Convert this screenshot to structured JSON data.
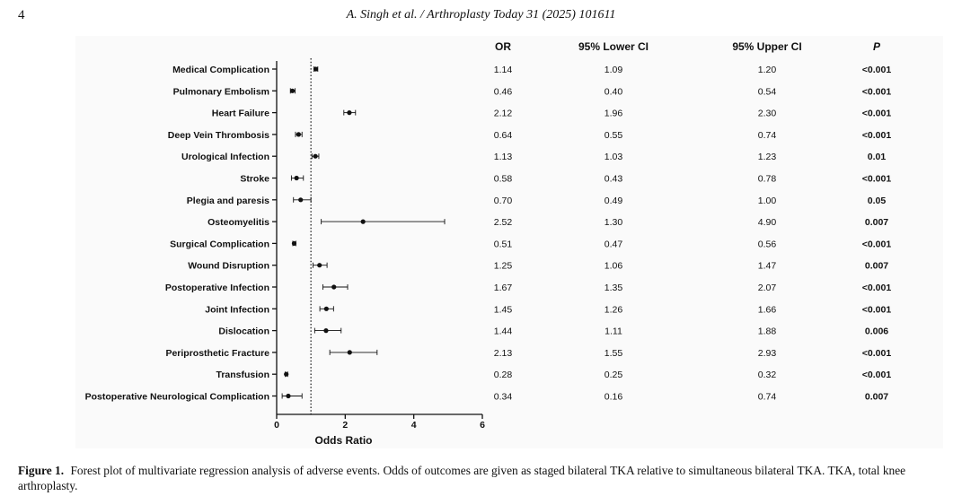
{
  "header": {
    "page_number": "4",
    "running_title": "A. Singh et al. / Arthroplasty Today 31 (2025) 101611"
  },
  "caption": {
    "label": "Figure 1.",
    "text": "Forest plot of multivariate regression analysis of adverse events. Odds of outcomes are given as staged bilateral TKA relative to simultaneous bilateral TKA. TKA, total knee arthroplasty."
  },
  "colors": {
    "ink": "#111111",
    "panel": "#fafafa"
  },
  "chart_data": {
    "type": "forest",
    "title": "",
    "xlabel": "Odds Ratio",
    "ylabel": "",
    "xlim": [
      0,
      6
    ],
    "xticks": [
      0,
      2,
      4,
      6
    ],
    "reference_line": 1,
    "columns": [
      "OR",
      "95% Lower CI",
      "95% Upper CI",
      "P"
    ],
    "rows": [
      {
        "label": "Medical Complication",
        "or": 1.14,
        "lower": 1.09,
        "upper": 1.2,
        "or_text": "1.14",
        "lower_text": "1.09",
        "upper_text": "1.20",
        "p": "<0.001"
      },
      {
        "label": "Pulmonary Embolism",
        "or": 0.46,
        "lower": 0.4,
        "upper": 0.54,
        "or_text": "0.46",
        "lower_text": "0.40",
        "upper_text": "0.54",
        "p": "<0.001"
      },
      {
        "label": "Heart Failure",
        "or": 2.12,
        "lower": 1.96,
        "upper": 2.3,
        "or_text": "2.12",
        "lower_text": "1.96",
        "upper_text": "2.30",
        "p": "<0.001"
      },
      {
        "label": "Deep Vein Thrombosis",
        "or": 0.64,
        "lower": 0.55,
        "upper": 0.74,
        "or_text": "0.64",
        "lower_text": "0.55",
        "upper_text": "0.74",
        "p": "<0.001"
      },
      {
        "label": "Urological Infection",
        "or": 1.13,
        "lower": 1.03,
        "upper": 1.23,
        "or_text": "1.13",
        "lower_text": "1.03",
        "upper_text": "1.23",
        "p": "0.01"
      },
      {
        "label": "Stroke",
        "or": 0.58,
        "lower": 0.43,
        "upper": 0.78,
        "or_text": "0.58",
        "lower_text": "0.43",
        "upper_text": "0.78",
        "p": "<0.001"
      },
      {
        "label": "Plegia and paresis",
        "or": 0.7,
        "lower": 0.49,
        "upper": 1.0,
        "or_text": "0.70",
        "lower_text": "0.49",
        "upper_text": "1.00",
        "p": "0.05"
      },
      {
        "label": "Osteomyelitis",
        "or": 2.52,
        "lower": 1.3,
        "upper": 4.9,
        "or_text": "2.52",
        "lower_text": "1.30",
        "upper_text": "4.90",
        "p": "0.007"
      },
      {
        "label": "Surgical Complication",
        "or": 0.51,
        "lower": 0.47,
        "upper": 0.56,
        "or_text": "0.51",
        "lower_text": "0.47",
        "upper_text": "0.56",
        "p": "<0.001"
      },
      {
        "label": "Wound Disruption",
        "or": 1.25,
        "lower": 1.06,
        "upper": 1.47,
        "or_text": "1.25",
        "lower_text": "1.06",
        "upper_text": "1.47",
        "p": "0.007"
      },
      {
        "label": "Postoperative Infection",
        "or": 1.67,
        "lower": 1.35,
        "upper": 2.07,
        "or_text": "1.67",
        "lower_text": "1.35",
        "upper_text": "2.07",
        "p": "<0.001"
      },
      {
        "label": "Joint Infection",
        "or": 1.45,
        "lower": 1.26,
        "upper": 1.66,
        "or_text": "1.45",
        "lower_text": "1.26",
        "upper_text": "1.66",
        "p": "<0.001"
      },
      {
        "label": "Dislocation",
        "or": 1.44,
        "lower": 1.11,
        "upper": 1.88,
        "or_text": "1.44",
        "lower_text": "1.11",
        "upper_text": "1.88",
        "p": "0.006"
      },
      {
        "label": "Periprosthetic Fracture",
        "or": 2.13,
        "lower": 1.55,
        "upper": 2.93,
        "or_text": "2.13",
        "lower_text": "1.55",
        "upper_text": "2.93",
        "p": "<0.001"
      },
      {
        "label": "Transfusion",
        "or": 0.28,
        "lower": 0.25,
        "upper": 0.32,
        "or_text": "0.28",
        "lower_text": "0.25",
        "upper_text": "0.32",
        "p": "<0.001"
      },
      {
        "label": "Postoperative Neurological Complication",
        "or": 0.34,
        "lower": 0.16,
        "upper": 0.74,
        "or_text": "0.34",
        "lower_text": "0.16",
        "upper_text": "0.74",
        "p": "0.007"
      }
    ]
  }
}
